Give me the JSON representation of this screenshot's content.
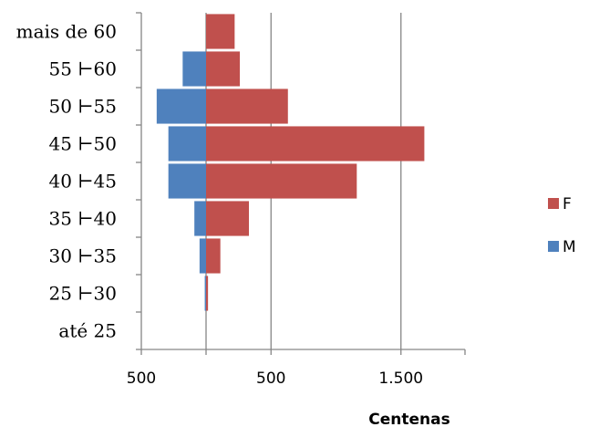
{
  "chart_data": {
    "type": "bar",
    "orientation": "horizontal",
    "stacking": "population-pyramid",
    "categories": [
      "até 25",
      "25 ⊢30",
      "30 ⊢35",
      "35 ⊢40",
      "40 ⊢45",
      "45 ⊢50",
      "50 ⊢55",
      "55 ⊢60",
      "mais de 60"
    ],
    "series": [
      {
        "name": "M",
        "color": "#4F81BD",
        "values": [
          0,
          -10,
          -50,
          -90,
          -290,
          -290,
          -380,
          -180,
          0
        ]
      },
      {
        "name": "F",
        "color": "#C0504D",
        "values": [
          0,
          15,
          110,
          330,
          1160,
          1680,
          630,
          260,
          220
        ]
      }
    ],
    "xlim": [
      -500,
      2000
    ],
    "xticks": [
      -500,
      500,
      1500
    ],
    "xtick_labels": [
      "500",
      "500",
      "1.500"
    ],
    "xlabel": "Centenas",
    "ylabel": "",
    "title": "",
    "grid": "vertical",
    "legend": "right"
  }
}
